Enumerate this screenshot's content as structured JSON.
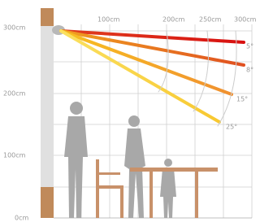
{
  "height_labels": [
    "300cm",
    "200cm",
    "100cm",
    "0cm"
  ],
  "distance_labels": [
    "100cm",
    "200cm",
    "250cm",
    "300cm"
  ],
  "angle_labels": [
    "5°",
    "8°",
    "15°",
    "25°"
  ]
}
